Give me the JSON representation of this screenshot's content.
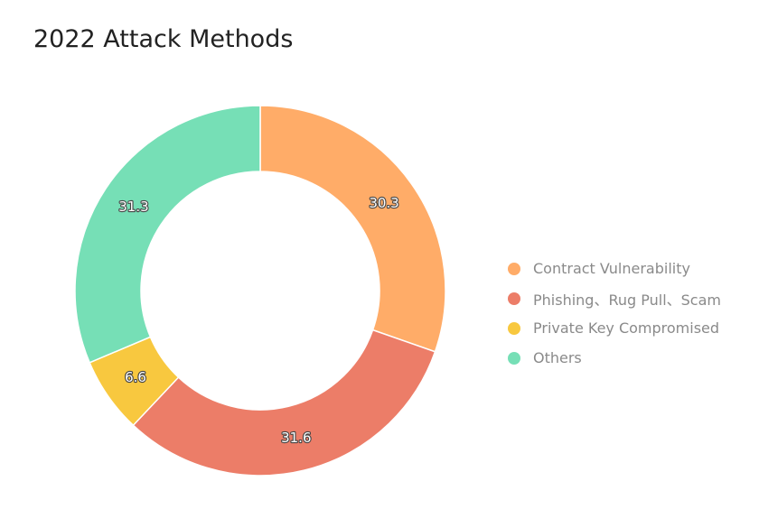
{
  "chart_data": {
    "type": "pie",
    "title": "2022 Attack Methods",
    "labels": [
      "Contract Vulnerability",
      "Phishing、Rug Pull、Scam",
      "Private Key Compromised",
      "Others"
    ],
    "values": [
      30.3,
      31.6,
      6.6,
      31.3
    ],
    "colors": [
      "#FFAC68",
      "#EC7D68",
      "#F8C83F",
      "#76DFB6"
    ],
    "donut": true,
    "legend": "right"
  }
}
